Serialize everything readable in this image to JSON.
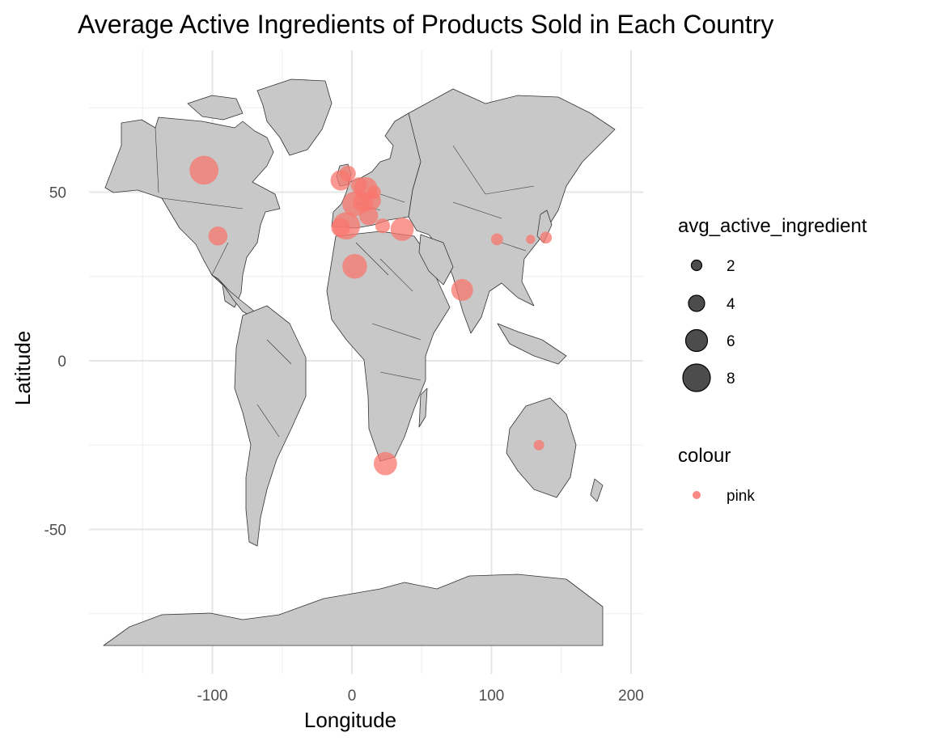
{
  "chart_data": {
    "type": "scatter",
    "title": "Average Active Ingredients of Products Sold in Each Country",
    "xlabel": "Longitude",
    "ylabel": "Latitude",
    "xlim": [
      -180,
      200
    ],
    "ylim": [
      -90,
      90
    ],
    "x_ticks": [
      -100,
      0,
      100,
      200
    ],
    "y_ticks": [
      50,
      0,
      -50
    ],
    "grid": true,
    "basemap": "world-countries",
    "point_color": "#F8766D",
    "point_opacity": 0.75,
    "points": [
      {
        "x": -106,
        "y": 56.5,
        "size": 8.5
      },
      {
        "x": -96,
        "y": 37,
        "size": 5
      },
      {
        "x": -8,
        "y": 53.5,
        "size": 5.5
      },
      {
        "x": -3,
        "y": 55.5,
        "size": 4
      },
      {
        "x": 2,
        "y": 46.5,
        "size": 7
      },
      {
        "x": 10,
        "y": 51,
        "size": 6.5
      },
      {
        "x": 8,
        "y": 47,
        "size": 5.5
      },
      {
        "x": 14,
        "y": 47.5,
        "size": 5
      },
      {
        "x": 12,
        "y": 43,
        "size": 5
      },
      {
        "x": 5,
        "y": 52,
        "size": 4
      },
      {
        "x": 16,
        "y": 50,
        "size": 3
      },
      {
        "x": -4,
        "y": 40,
        "size": 8
      },
      {
        "x": -8,
        "y": 39.5,
        "size": 5
      },
      {
        "x": 2,
        "y": 28,
        "size": 7
      },
      {
        "x": 36,
        "y": 39,
        "size": 6.5
      },
      {
        "x": 22,
        "y": 40,
        "size": 3.5
      },
      {
        "x": 79,
        "y": 21,
        "size": 6
      },
      {
        "x": 104,
        "y": 36,
        "size": 2.5
      },
      {
        "x": 128,
        "y": 36,
        "size": 1.5
      },
      {
        "x": 139,
        "y": 36.5,
        "size": 2.5
      },
      {
        "x": 134,
        "y": -25,
        "size": 2
      },
      {
        "x": 24,
        "y": -30.5,
        "size": 6.5
      }
    ],
    "legend_placement": "right",
    "legends": [
      {
        "title": "avg_active_ingredient",
        "entries": [
          {
            "label": "2",
            "size": 2
          },
          {
            "label": "4",
            "size": 4
          },
          {
            "label": "6",
            "size": 6
          },
          {
            "label": "8",
            "size": 8
          }
        ]
      },
      {
        "title": "colour",
        "entries": [
          {
            "label": "pink",
            "color": "#F8766D"
          }
        ]
      }
    ]
  }
}
